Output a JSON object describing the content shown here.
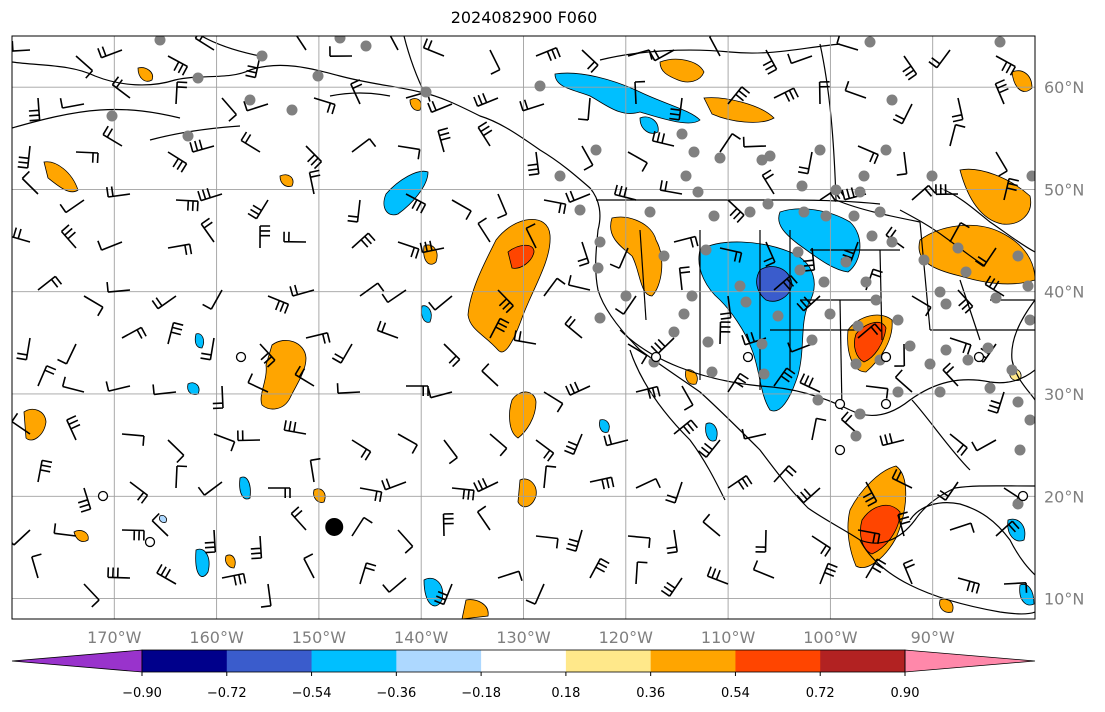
{
  "title": "2024082900 F060",
  "map": {
    "lon_range": [
      -180,
      -80
    ],
    "lat_range": [
      8,
      65
    ],
    "lon_ticks": [
      -170,
      -160,
      -150,
      -140,
      -130,
      -120,
      -110,
      -100,
      -90
    ],
    "lon_labels": [
      "170°W",
      "160°W",
      "150°W",
      "140°W",
      "130°W",
      "120°W",
      "110°W",
      "100°W",
      "90°W"
    ],
    "lat_ticks": [
      10,
      20,
      30,
      40,
      50,
      60
    ],
    "lat_labels": [
      "10°N",
      "20°N",
      "30°N",
      "40°N",
      "50°N",
      "60°N"
    ],
    "grid": true
  },
  "colorbar": {
    "tick_labels": [
      "−0.90",
      "−0.72",
      "−0.54",
      "−0.36",
      "−0.18",
      "0.18",
      "0.36",
      "0.54",
      "0.72",
      "0.90"
    ],
    "colors": [
      "#9933cc",
      "#00008b",
      "#3a5ccc",
      "#00bfff",
      "#add8ff",
      "#ffffff",
      "#ffe88a",
      "#ffa500",
      "#ff4500",
      "#b22222",
      "#ff88aa"
    ]
  },
  "fill_colors": {
    "neg_1": "#add8ff",
    "neg_2": "#00bfff",
    "neg_3": "#3a5ccc",
    "pos_1": "#ffe88a",
    "pos_2": "#ffa500",
    "pos_3": "#ff4500",
    "pos_4": "#b22222"
  },
  "markers": {
    "storm_center": {
      "lon": -148.5,
      "lat": 17
    }
  }
}
